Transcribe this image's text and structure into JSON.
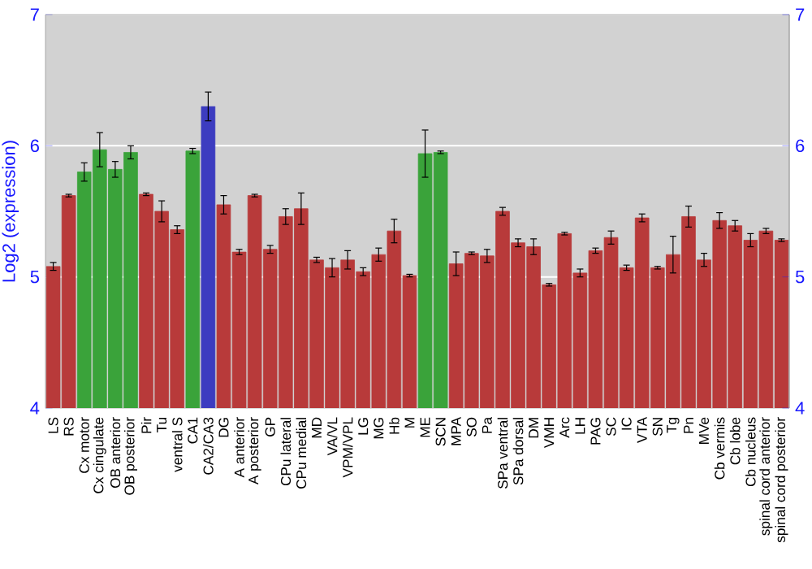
{
  "chart_data": {
    "type": "bar",
    "ylabel": "Log2 (expression)",
    "categories": [
      "LS",
      "RS",
      "Cx motor",
      "Cx cingulate",
      "OB anterior",
      "OB posterior",
      "Pir",
      "Tu",
      "ventral S",
      "CA1",
      "CA2/CA3",
      "DG",
      "A anterior",
      "A posterior",
      "GP",
      "CPu lateral",
      "CPu medial",
      "MD",
      "VA/VL",
      "VPM/VPL",
      "LG",
      "MG",
      "Hb",
      "M",
      "ME",
      "SCN",
      "MPA",
      "SO",
      "Pa",
      "SPa ventral",
      "SPa dorsal",
      "DM",
      "VMH",
      "Arc",
      "LH",
      "PAG",
      "SC",
      "IC",
      "VTA",
      "SN",
      "Tg",
      "Pn",
      "MVe",
      "Cb vermis",
      "Cb lobe",
      "Cb nucleus",
      "spinal cord anterior",
      "spinal cord posterior"
    ],
    "values": [
      5.08,
      5.62,
      5.8,
      5.97,
      5.82,
      5.95,
      5.63,
      5.5,
      5.36,
      5.96,
      6.3,
      5.55,
      5.19,
      5.62,
      5.21,
      5.46,
      5.52,
      5.13,
      5.07,
      5.13,
      5.04,
      5.17,
      5.35,
      5.01,
      5.94,
      5.95,
      5.1,
      5.18,
      5.16,
      5.5,
      5.26,
      5.23,
      4.94,
      5.33,
      5.03,
      5.2,
      5.3,
      5.07,
      5.45,
      5.07,
      5.17,
      5.46,
      5.13,
      5.43,
      5.39,
      5.28,
      5.35,
      5.28
    ],
    "errors": [
      0.03,
      0.01,
      0.07,
      0.13,
      0.06,
      0.05,
      0.01,
      0.08,
      0.03,
      0.02,
      0.11,
      0.07,
      0.02,
      0.01,
      0.03,
      0.06,
      0.12,
      0.02,
      0.07,
      0.07,
      0.03,
      0.05,
      0.09,
      0.01,
      0.18,
      0.01,
      0.09,
      0.01,
      0.05,
      0.03,
      0.03,
      0.06,
      0.01,
      0.01,
      0.03,
      0.02,
      0.05,
      0.02,
      0.03,
      0.01,
      0.14,
      0.08,
      0.05,
      0.06,
      0.04,
      0.05,
      0.02,
      0.01
    ],
    "colors": [
      "#b83a3a",
      "#b83a3a",
      "#3aa33a",
      "#3aa33a",
      "#3aa33a",
      "#3aa33a",
      "#b83a3a",
      "#b83a3a",
      "#b83a3a",
      "#3aa33a",
      "#3c3cc0",
      "#b83a3a",
      "#b83a3a",
      "#b83a3a",
      "#b83a3a",
      "#b83a3a",
      "#b83a3a",
      "#b83a3a",
      "#b83a3a",
      "#b83a3a",
      "#b83a3a",
      "#b83a3a",
      "#b83a3a",
      "#b83a3a",
      "#3aa33a",
      "#3aa33a",
      "#b83a3a",
      "#b83a3a",
      "#b83a3a",
      "#b83a3a",
      "#b83a3a",
      "#b83a3a",
      "#b83a3a",
      "#b83a3a",
      "#b83a3a",
      "#b83a3a",
      "#b83a3a",
      "#b83a3a",
      "#b83a3a",
      "#b83a3a",
      "#b83a3a",
      "#b83a3a",
      "#b83a3a",
      "#b83a3a",
      "#b83a3a",
      "#b83a3a",
      "#b83a3a",
      "#b83a3a"
    ],
    "ylim": [
      4,
      7
    ],
    "yticks": [
      4,
      5,
      6,
      7
    ],
    "y2lim": [
      4,
      7
    ],
    "y2ticks": [
      4,
      5,
      6,
      7
    ],
    "grid": "y"
  }
}
